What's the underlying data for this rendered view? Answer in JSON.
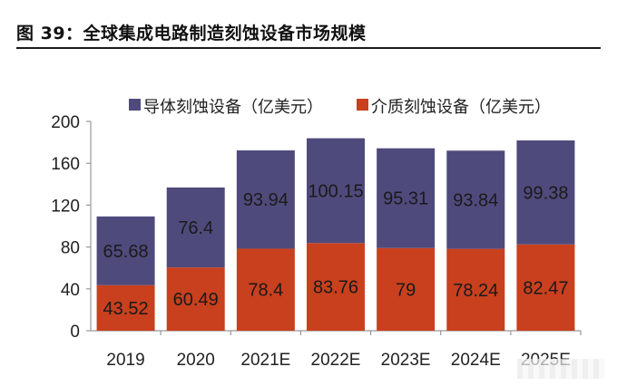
{
  "figure_title": "图 39：全球集成电路制造刻蚀设备市场规模",
  "chart_data": {
    "type": "bar",
    "stacked": true,
    "categories": [
      "2019",
      "2020",
      "2021E",
      "2022E",
      "2023E",
      "2024E",
      "2025E"
    ],
    "series": [
      {
        "name": "介质刻蚀设备（亿美元）",
        "color": "#c8401e",
        "values": [
          43.52,
          60.49,
          78.4,
          83.76,
          79,
          78.24,
          82.47
        ],
        "labels": [
          "43.52",
          "60.49",
          "78.4",
          "83.76",
          "79",
          "78.24",
          "82.47"
        ]
      },
      {
        "name": "导体刻蚀设备（亿美元）",
        "color": "#4f4a7c",
        "values": [
          65.68,
          76.4,
          93.94,
          100.15,
          95.31,
          93.84,
          99.38
        ],
        "labels": [
          "65.68",
          "76.4",
          "93.94",
          "100.15",
          "95.31",
          "93.84",
          "99.38"
        ]
      }
    ],
    "ylim": [
      0,
      200
    ],
    "yticks": [
      0,
      40,
      80,
      120,
      160,
      200
    ],
    "ytick_labels": [
      "0",
      "40",
      "80",
      "120",
      "160",
      "200"
    ],
    "legend_position": "top",
    "grid": false
  }
}
